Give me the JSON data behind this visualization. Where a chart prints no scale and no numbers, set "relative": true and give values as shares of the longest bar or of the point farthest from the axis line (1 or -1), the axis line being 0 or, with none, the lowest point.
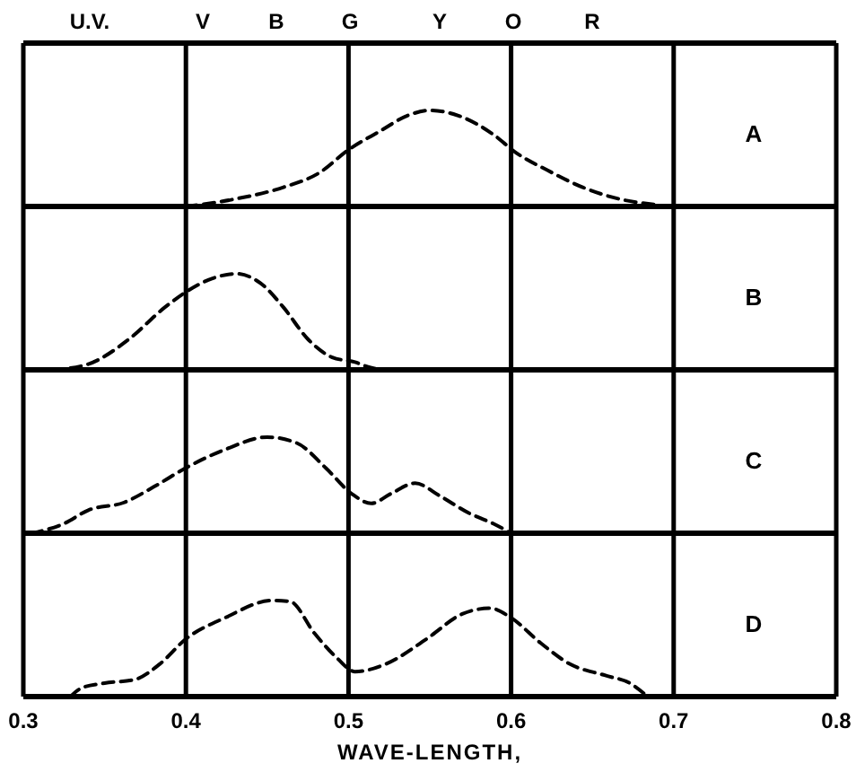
{
  "chart_data": [
    {
      "type": "line",
      "title": "A",
      "x": [
        0.4,
        0.431,
        0.46,
        0.482,
        0.5,
        0.519,
        0.537,
        0.55,
        0.57,
        0.589,
        0.603,
        0.622,
        0.644,
        0.666,
        0.688
      ],
      "series": [
        {
          "color": "#000000",
          "values": [
            0,
            0.08,
            0.2,
            0.35,
            0.59,
            0.78,
            0.95,
            1,
            0.93,
            0.75,
            0.56,
            0.38,
            0.2,
            0.08,
            0.02
          ]
        }
      ],
      "relative": true,
      "xlim": [
        0.3,
        0.8
      ],
      "xticks": [
        0.3,
        0.4,
        0.5,
        0.6,
        0.7,
        0.8
      ],
      "annotations": [
        "U.V.",
        "V",
        "B",
        "G",
        "Y",
        "O",
        "R"
      ],
      "grid": "x",
      "line_style": "dashed",
      "tick_labels": false
    },
    {
      "type": "line",
      "title": "B",
      "x": [
        0.318,
        0.34,
        0.365,
        0.387,
        0.4,
        0.416,
        0.431,
        0.446,
        0.46,
        0.475,
        0.49,
        0.504,
        0.512,
        0.52
      ],
      "series": [
        {
          "color": "#000000",
          "values": [
            0,
            0.06,
            0.32,
            0.65,
            0.81,
            0.95,
            1,
            0.9,
            0.65,
            0.32,
            0.13,
            0.08,
            0.03,
            0
          ]
        }
      ],
      "relative": true,
      "xlim": [
        0.3,
        0.8
      ],
      "xticks": [
        0.3,
        0.4,
        0.5,
        0.6,
        0.7,
        0.8
      ],
      "grid": "x",
      "line_style": "dashed",
      "tick_labels": false
    },
    {
      "type": "line",
      "title": "C",
      "x": [
        0.305,
        0.325,
        0.34,
        0.362,
        0.38,
        0.4,
        0.424,
        0.45,
        0.468,
        0.486,
        0.502,
        0.514,
        0.526,
        0.541,
        0.556,
        0.574,
        0.589,
        0.6
      ],
      "series": [
        {
          "color": "#000000",
          "values": [
            0,
            0.1,
            0.24,
            0.32,
            0.48,
            0.68,
            0.87,
            1,
            0.94,
            0.68,
            0.41,
            0.31,
            0.41,
            0.52,
            0.39,
            0.21,
            0.1,
            0
          ]
        }
      ],
      "relative": true,
      "xlim": [
        0.3,
        0.8
      ],
      "xticks": [
        0.3,
        0.4,
        0.5,
        0.6,
        0.7,
        0.8
      ],
      "grid": "x",
      "line_style": "dashed",
      "tick_labels": false
    },
    {
      "type": "line",
      "title": "D",
      "xlabel": "WAVE-LENGTH,",
      "x": [
        0.329,
        0.336,
        0.35,
        0.369,
        0.384,
        0.4,
        0.424,
        0.453,
        0.464,
        0.479,
        0.493,
        0.504,
        0.523,
        0.548,
        0.57,
        0.587,
        0.6,
        0.618,
        0.636,
        0.658,
        0.673,
        0.684
      ],
      "series": [
        {
          "color": "#000000",
          "values": [
            0,
            0.09,
            0.14,
            0.18,
            0.34,
            0.6,
            0.82,
            1,
            0.99,
            0.66,
            0.4,
            0.26,
            0.34,
            0.6,
            0.86,
            0.92,
            0.82,
            0.56,
            0.34,
            0.22,
            0.14,
            0
          ]
        }
      ],
      "relative": true,
      "xlim": [
        0.3,
        0.8
      ],
      "xticks": [
        0.3,
        0.4,
        0.5,
        0.6,
        0.7,
        0.8
      ],
      "grid": "x",
      "line_style": "dashed",
      "tick_labels": "x"
    }
  ]
}
